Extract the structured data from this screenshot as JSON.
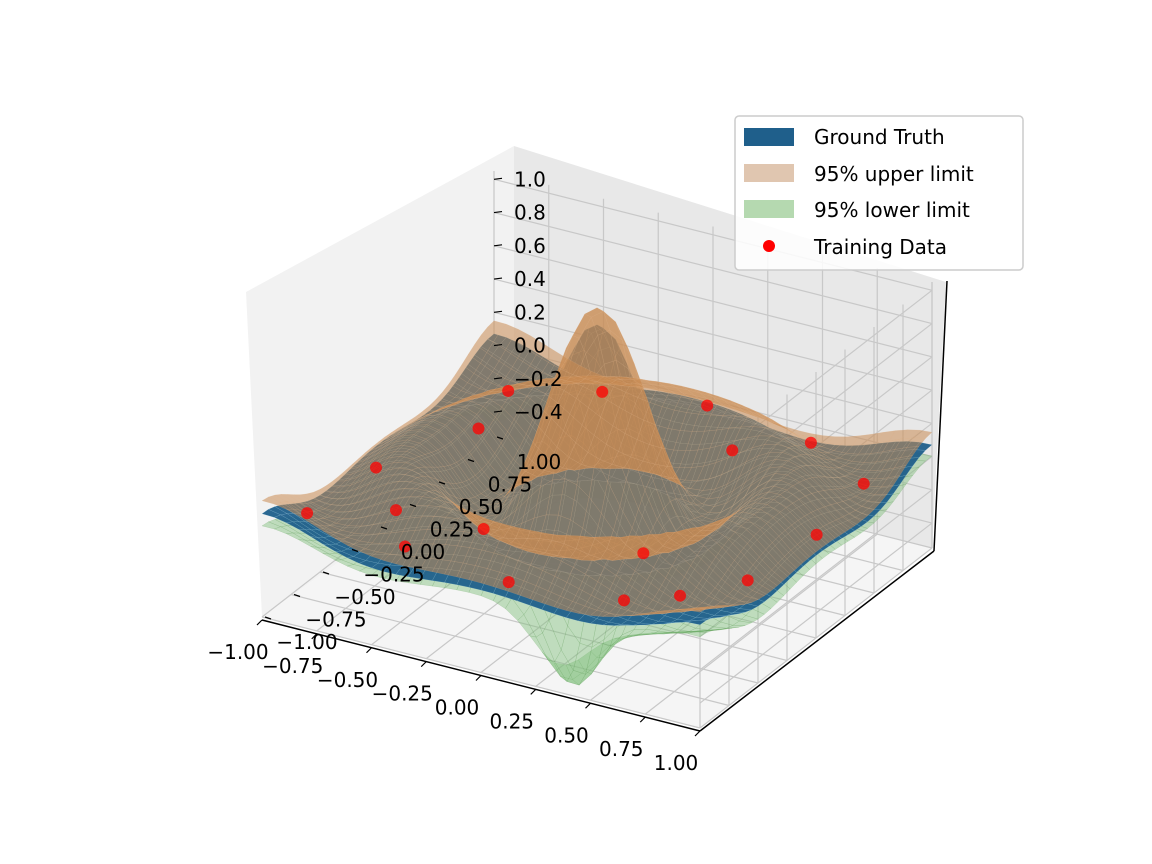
{
  "chart_data": {
    "type": "surface3d",
    "title": "",
    "xlabel": "",
    "ylabel": "",
    "zlabel": "",
    "x_ticks": [
      "−1.00",
      "−0.75",
      "−0.50",
      "−0.25",
      "0.00",
      "0.25",
      "0.50",
      "0.75",
      "1.00"
    ],
    "y_ticks": [
      "−1.00",
      "−0.75",
      "−0.50",
      "−0.25",
      "0.00",
      "0.25",
      "0.50",
      "0.75",
      "1.00"
    ],
    "z_ticks": [
      "−0.4",
      "−0.2",
      "0.0",
      "0.2",
      "0.4",
      "0.6",
      "0.8",
      "1.0"
    ],
    "xlim": [
      -1,
      1
    ],
    "ylim": [
      -1,
      1
    ],
    "zlim": [
      -0.55,
      1.05
    ],
    "grid": true,
    "legend_position": "top-right",
    "series": [
      {
        "name": "Ground Truth",
        "kind": "surface",
        "color": "#1f5f8b",
        "function": "sinc(10*r)"
      },
      {
        "name": "95% upper limit",
        "kind": "surface",
        "color": "#e0c6b0"
      },
      {
        "name": "95% lower limit",
        "kind": "surface",
        "color": "#b5d9b0"
      },
      {
        "name": "Training Data",
        "kind": "scatter",
        "color": "#ff0000",
        "points": [
          [
            -0.9,
            -0.8,
            0.0
          ],
          [
            -0.85,
            -0.3,
            0.02
          ],
          [
            -0.7,
            0.3,
            -0.02
          ],
          [
            -0.4,
            0.8,
            0.03
          ],
          [
            0.0,
            0.95,
            0.0
          ],
          [
            0.5,
            0.9,
            -0.03
          ],
          [
            0.9,
            0.6,
            0.02
          ],
          [
            0.95,
            0.1,
            0.0
          ],
          [
            0.9,
            -0.4,
            -0.02
          ],
          [
            0.6,
            -0.9,
            0.03
          ],
          [
            0.1,
            -0.95,
            0.0
          ],
          [
            -0.4,
            -0.9,
            0.02
          ],
          [
            -0.6,
            -0.6,
            0.01
          ],
          [
            0.3,
            0.6,
            0.02
          ],
          [
            -0.75,
            0.65,
            0.0
          ],
          [
            0.75,
            -0.7,
            0.0
          ],
          [
            -0.2,
            -0.6,
            0.03
          ],
          [
            0.45,
            -0.45,
            0.02
          ]
        ]
      }
    ]
  }
}
